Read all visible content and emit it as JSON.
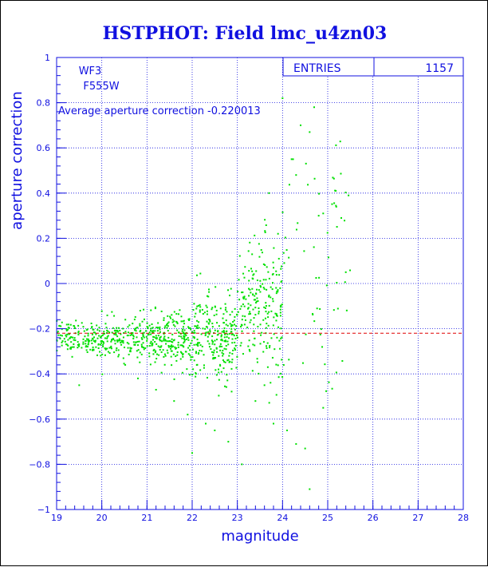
{
  "chart_data": {
    "type": "scatter",
    "title": "HSTPHOT: Field lmc_u4zn03",
    "xlabel": "magnitude",
    "ylabel": "aperture correction",
    "xlim": [
      19,
      28
    ],
    "ylim": [
      -1,
      1
    ],
    "xticks": [
      "19",
      "20",
      "21",
      "22",
      "23",
      "24",
      "25",
      "26",
      "27",
      "28"
    ],
    "yticks": [
      "-1",
      "-0.8",
      "-0.6",
      "-0.4",
      "-0.2",
      "0",
      "0.2",
      "0.4",
      "0.6",
      "0.8",
      "1"
    ],
    "grid": true,
    "annotations": {
      "chip": "WF3",
      "filter": "F555W",
      "average_label": "Average aperture correction -0.220013"
    },
    "stats": {
      "entries_label": "ENTRIES",
      "entries_value": "1157"
    },
    "average_value": -0.220013,
    "colors": {
      "points": "#00e000",
      "axis": "#1010e0",
      "average_line": "#e00000"
    },
    "clusters": [
      {
        "x_range": [
          19.0,
          20.0
        ],
        "y_center": -0.24,
        "y_spread": 0.035,
        "count": 140
      },
      {
        "x_range": [
          20.0,
          21.0
        ],
        "y_center": -0.245,
        "y_spread": 0.045,
        "count": 160
      },
      {
        "x_range": [
          21.0,
          22.0
        ],
        "y_center": -0.25,
        "y_spread": 0.06,
        "count": 220
      },
      {
        "x_range": [
          22.0,
          23.0
        ],
        "y_center": -0.24,
        "y_spread": 0.09,
        "count": 250
      },
      {
        "x_range": [
          23.0,
          24.0
        ],
        "y_center": -0.1,
        "y_spread": 0.15,
        "count": 210
      },
      {
        "x_range": [
          24.0,
          25.5
        ],
        "y_center": 0.0,
        "y_spread": 0.35,
        "count": 60
      }
    ],
    "outliers": [
      [
        19.5,
        -0.45
      ],
      [
        20.8,
        -0.42
      ],
      [
        21.2,
        -0.47
      ],
      [
        21.6,
        -0.52
      ],
      [
        21.9,
        -0.58
      ],
      [
        22.0,
        -0.75
      ],
      [
        22.3,
        -0.62
      ],
      [
        22.5,
        -0.65
      ],
      [
        22.8,
        -0.7
      ],
      [
        23.1,
        -0.8
      ],
      [
        23.4,
        -0.52
      ],
      [
        23.6,
        -0.45
      ],
      [
        23.8,
        -0.62
      ],
      [
        24.1,
        -0.65
      ],
      [
        24.3,
        -0.71
      ],
      [
        24.5,
        -0.73
      ],
      [
        24.6,
        -0.91
      ],
      [
        24.9,
        -0.55
      ],
      [
        24.2,
        0.55
      ],
      [
        24.4,
        0.7
      ],
      [
        24.6,
        0.67
      ],
      [
        24.7,
        0.78
      ],
      [
        24.0,
        0.82
      ],
      [
        24.3,
        0.48
      ],
      [
        25.3,
        0.29
      ],
      [
        25.4,
        0.05
      ],
      [
        24.8,
        0.3
      ],
      [
        24.9,
        0.31
      ],
      [
        23.7,
        0.4
      ],
      [
        23.9,
        0.22
      ]
    ]
  }
}
